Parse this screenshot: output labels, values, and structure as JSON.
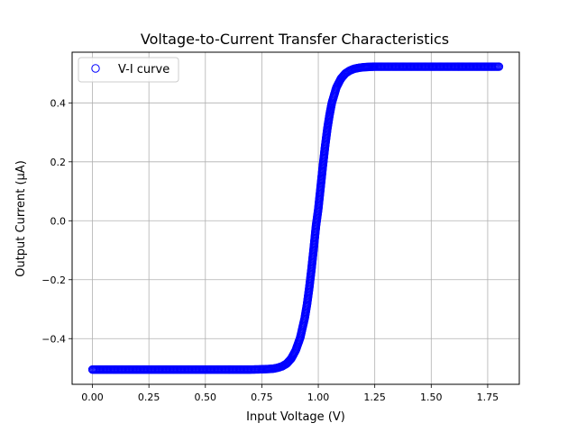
{
  "chart_data": {
    "type": "scatter",
    "title": "Voltage-to-Current Transfer Characteristics",
    "xlabel": "Input Voltage (V)",
    "ylabel": "Output Current (μA)",
    "xlim": [
      -0.09,
      1.89
    ],
    "ylim": [
      -0.555,
      0.572
    ],
    "xticks": [
      0.0,
      0.25,
      0.5,
      0.75,
      1.0,
      1.25,
      1.5,
      1.75
    ],
    "xtick_labels": [
      "0.00",
      "0.25",
      "0.50",
      "0.75",
      "1.00",
      "1.25",
      "1.50",
      "1.75"
    ],
    "yticks": [
      -0.4,
      -0.2,
      0.0,
      0.2,
      0.4
    ],
    "ytick_labels": [
      "−0.4",
      "−0.2",
      "0.0",
      "0.2",
      "0.4"
    ],
    "grid": true,
    "legend_position": "upper-left",
    "series": [
      {
        "name": "V-I curve",
        "marker": "open-circle",
        "color": "#0000ff",
        "x": [
          0.0,
          0.05,
          0.1,
          0.15,
          0.2,
          0.25,
          0.3,
          0.35,
          0.4,
          0.45,
          0.5,
          0.55,
          0.6,
          0.65,
          0.7,
          0.75,
          0.78,
          0.8,
          0.82,
          0.84,
          0.86,
          0.88,
          0.9,
          0.92,
          0.94,
          0.95,
          0.96,
          0.97,
          0.98,
          0.99,
          1.0,
          1.01,
          1.02,
          1.03,
          1.04,
          1.05,
          1.06,
          1.08,
          1.1,
          1.12,
          1.14,
          1.16,
          1.18,
          1.2,
          1.22,
          1.25,
          1.3,
          1.35,
          1.4,
          1.45,
          1.5,
          1.55,
          1.6,
          1.65,
          1.7,
          1.75,
          1.8
        ],
        "y": [
          -0.505,
          -0.505,
          -0.505,
          -0.505,
          -0.505,
          -0.505,
          -0.505,
          -0.505,
          -0.505,
          -0.505,
          -0.505,
          -0.505,
          -0.505,
          -0.505,
          -0.505,
          -0.504,
          -0.503,
          -0.502,
          -0.499,
          -0.494,
          -0.485,
          -0.468,
          -0.44,
          -0.397,
          -0.33,
          -0.284,
          -0.228,
          -0.163,
          -0.091,
          -0.016,
          0.04,
          0.112,
          0.185,
          0.252,
          0.312,
          0.36,
          0.4,
          0.452,
          0.482,
          0.5,
          0.51,
          0.516,
          0.519,
          0.521,
          0.522,
          0.523,
          0.523,
          0.523,
          0.523,
          0.523,
          0.523,
          0.523,
          0.523,
          0.523,
          0.523,
          0.523,
          0.523
        ]
      }
    ]
  }
}
